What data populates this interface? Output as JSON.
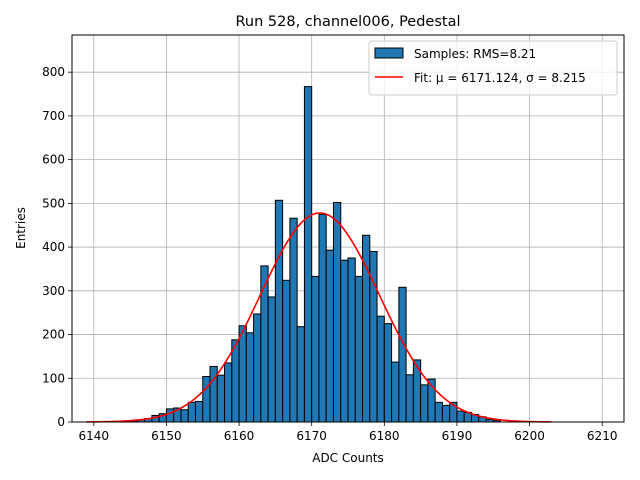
{
  "chart_data": {
    "type": "bar",
    "title": "Run 528, channel006, Pedestal",
    "xlabel": "ADC Counts",
    "ylabel": "Entries",
    "xlim": [
      6137,
      6213
    ],
    "ylim": [
      0,
      885
    ],
    "xticks": [
      6140,
      6150,
      6160,
      6170,
      6180,
      6190,
      6200,
      6210
    ],
    "yticks": [
      0,
      100,
      200,
      300,
      400,
      500,
      600,
      700,
      800
    ],
    "grid": true,
    "legend": {
      "position": "top-right",
      "entries": [
        {
          "label": "Samples: RMS=8.21",
          "kind": "patch",
          "color": "#1f77b4"
        },
        {
          "label": "Fit: μ = 6171.124, σ = 8.215",
          "kind": "line",
          "color": "#ff0000"
        }
      ]
    },
    "histogram": {
      "name": "Samples",
      "color": "#1f77b4",
      "edge_color": "#000000",
      "bin_width": 1,
      "bin_start": 6145,
      "counts": [
        2,
        5,
        8,
        15,
        19,
        30,
        32,
        28,
        45,
        47,
        104,
        127,
        107,
        135,
        188,
        220,
        204,
        247,
        357,
        286,
        507,
        324,
        466,
        218,
        767,
        333,
        475,
        393,
        502,
        370,
        375,
        333,
        427,
        390,
        242,
        225,
        137,
        308,
        108,
        142,
        85,
        98,
        45,
        38,
        45,
        25,
        22,
        17,
        12,
        6,
        3
      ]
    },
    "fit": {
      "name": "Fit",
      "color": "#ff0000",
      "mu": 6171.124,
      "sigma": 8.215,
      "amplitude": 478,
      "x_range": [
        6139,
        6203
      ]
    }
  }
}
